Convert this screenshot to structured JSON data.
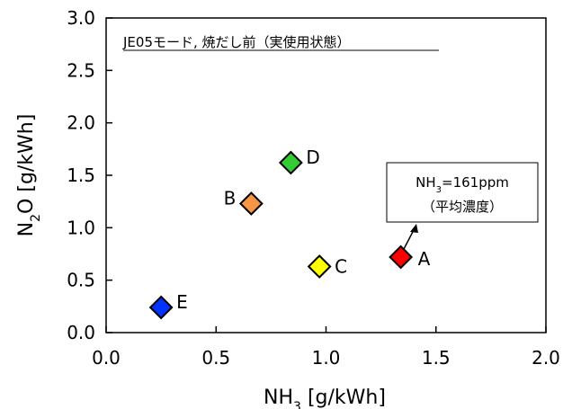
{
  "chart_data": {
    "type": "scatter",
    "title": "JE05モード, 焼だし前（実使用状態）",
    "xlabel": "NH₃ [g/kWh]",
    "xlabel_parts": {
      "main": "NH",
      "sub": "3",
      "rest": " [g/kWh]"
    },
    "ylabel": "N₂O [g/kWh]",
    "ylabel_parts": {
      "main": "N",
      "sub": "2",
      "rest": "O [g/kWh]"
    },
    "xlim": [
      0.0,
      2.0
    ],
    "ylim": [
      0.0,
      3.0
    ],
    "xticks": [
      "0.0",
      "0.5",
      "1.0",
      "1.5",
      "2.0"
    ],
    "yticks": [
      "0.0",
      "0.5",
      "1.0",
      "1.5",
      "2.0",
      "2.5",
      "3.0"
    ],
    "grid": false,
    "points": [
      {
        "label": "A",
        "x": 1.34,
        "y": 0.72,
        "color": "#ff0000"
      },
      {
        "label": "B",
        "x": 0.66,
        "y": 1.23,
        "color": "#f79646"
      },
      {
        "label": "C",
        "x": 0.97,
        "y": 0.63,
        "color": "#ffff00"
      },
      {
        "label": "D",
        "x": 0.84,
        "y": 1.62,
        "color": "#33cc33"
      },
      {
        "label": "E",
        "x": 0.25,
        "y": 0.24,
        "color": "#0033ff"
      }
    ],
    "annotation": {
      "line1_parts": {
        "main": "NH",
        "sub": "3",
        "rest": "=161ppm"
      },
      "line2": "（平均濃度）",
      "points_to": "A"
    }
  }
}
